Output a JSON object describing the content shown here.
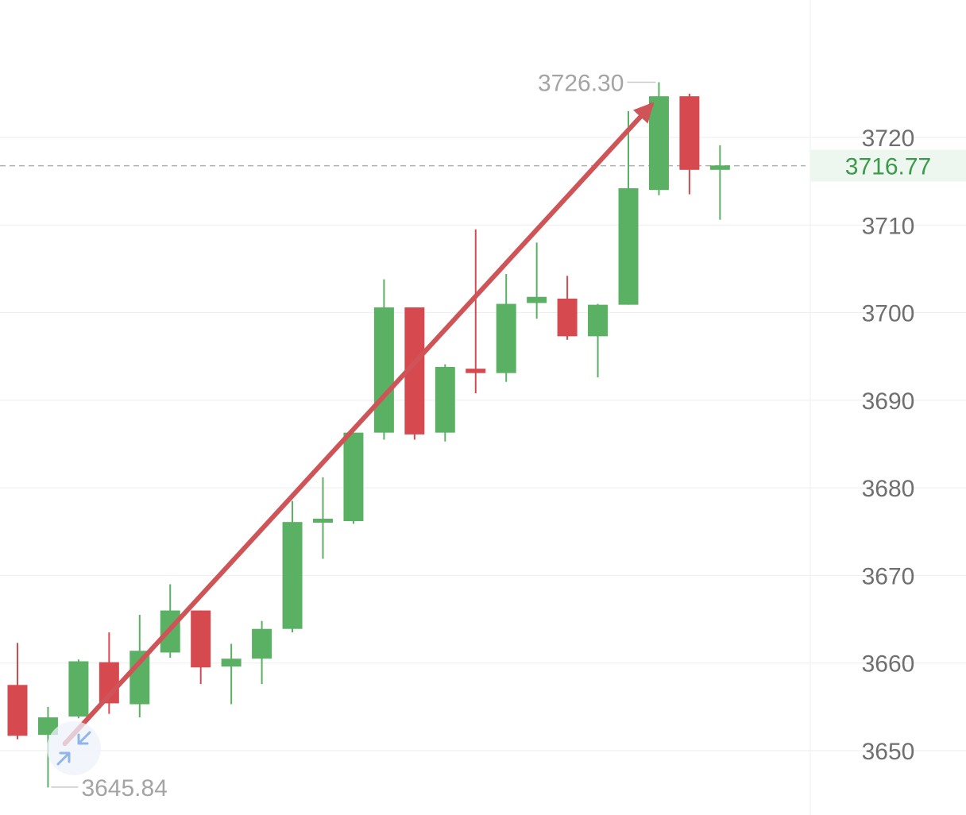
{
  "chart_data": {
    "type": "candlestick",
    "y_ticks": [
      3650,
      3660,
      3670,
      3680,
      3690,
      3700,
      3710,
      3720
    ],
    "ylim": [
      3640,
      3733
    ],
    "grid": "horizontal",
    "colors": {
      "up": "#5bb163",
      "down": "#d6494f",
      "grid": "#eeeeee",
      "axis_text": "#6f6f6f",
      "extreme_text": "#a4a4a4",
      "current_price_text": "#3a9a4a",
      "current_price_bg": "#eef7ef",
      "current_price_line": "#b0b0b0",
      "arrow": "#cf5458",
      "zoom_icon": "#8fb6e6"
    },
    "candles": [
      {
        "open": 3657.5,
        "high": 3662.3,
        "low": 3651.3,
        "close": 3651.7
      },
      {
        "open": 3651.8,
        "high": 3655.0,
        "low": 3645.8,
        "close": 3653.8
      },
      {
        "open": 3653.9,
        "high": 3660.4,
        "low": 3653.7,
        "close": 3660.2
      },
      {
        "open": 3660.1,
        "high": 3663.5,
        "low": 3654.2,
        "close": 3655.4
      },
      {
        "open": 3655.3,
        "high": 3665.5,
        "low": 3653.8,
        "close": 3661.4
      },
      {
        "open": 3661.2,
        "high": 3669.0,
        "low": 3660.6,
        "close": 3666.0
      },
      {
        "open": 3666.0,
        "high": 3666.0,
        "low": 3657.6,
        "close": 3659.5
      },
      {
        "open": 3659.6,
        "high": 3662.2,
        "low": 3655.3,
        "close": 3660.5
      },
      {
        "open": 3660.5,
        "high": 3664.8,
        "low": 3657.6,
        "close": 3663.9
      },
      {
        "open": 3663.9,
        "high": 3678.5,
        "low": 3663.5,
        "close": 3676.1
      },
      {
        "open": 3676.1,
        "high": 3681.2,
        "low": 3671.9,
        "close": 3676.4
      },
      {
        "open": 3676.2,
        "high": 3686.3,
        "low": 3675.9,
        "close": 3686.3
      },
      {
        "open": 3686.3,
        "high": 3703.8,
        "low": 3685.5,
        "close": 3700.6
      },
      {
        "open": 3700.6,
        "high": 3700.6,
        "low": 3685.5,
        "close": 3686.1
      },
      {
        "open": 3686.3,
        "high": 3694.1,
        "low": 3685.3,
        "close": 3693.8
      },
      {
        "open": 3693.6,
        "high": 3709.5,
        "low": 3690.8,
        "close": 3693.1
      },
      {
        "open": 3693.1,
        "high": 3704.4,
        "low": 3692.1,
        "close": 3701.0
      },
      {
        "open": 3701.1,
        "high": 3708.0,
        "low": 3699.3,
        "close": 3701.8
      },
      {
        "open": 3701.6,
        "high": 3704.2,
        "low": 3696.9,
        "close": 3697.3
      },
      {
        "open": 3697.3,
        "high": 3701.0,
        "low": 3692.6,
        "close": 3700.9
      },
      {
        "open": 3700.9,
        "high": 3723.0,
        "low": 3700.9,
        "close": 3714.2
      },
      {
        "open": 3714.0,
        "high": 3726.3,
        "low": 3713.4,
        "close": 3724.7
      },
      {
        "open": 3724.7,
        "high": 3725.0,
        "low": 3713.5,
        "close": 3716.3
      },
      {
        "open": 3716.3,
        "high": 3719.1,
        "low": 3710.6,
        "close": 3716.8
      }
    ],
    "high_label": "3726.30",
    "high_value": 3726.3,
    "high_candle_index": 21,
    "low_label": "3645.84",
    "low_value": 3645.84,
    "low_candle_index": 1,
    "current_price_label": "3716.77",
    "current_price": 3716.77,
    "trend_arrow": {
      "from": {
        "candle_index": 1.55,
        "value": 3650.8
      },
      "to": {
        "candle_index": 20.75,
        "value": 3723.7
      },
      "direction": "up"
    }
  },
  "icons": {
    "zoom": "collapse-arrows-icon"
  }
}
